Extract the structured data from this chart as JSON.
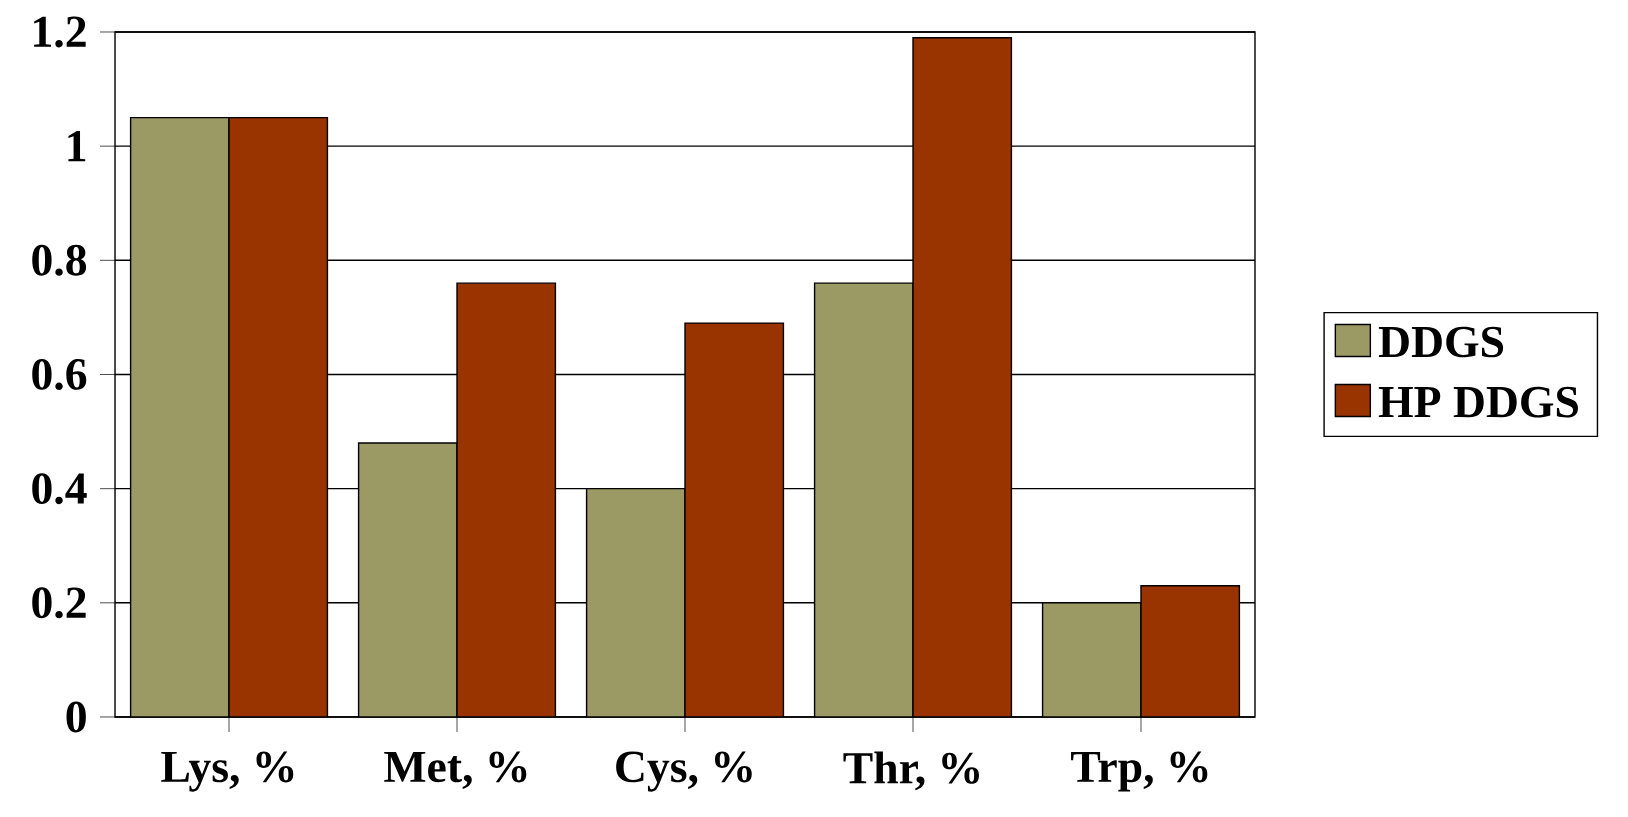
{
  "chart_data": {
    "type": "bar",
    "categories": [
      "Lys, %",
      "Met, %",
      "Cys, %",
      "Thr, %",
      "Trp, %"
    ],
    "series": [
      {
        "name": "DDGS",
        "color": "#9c9a64",
        "values": [
          1.05,
          0.48,
          0.4,
          0.76,
          0.2
        ]
      },
      {
        "name": "HP DDGS",
        "color": "#993300",
        "values": [
          1.05,
          0.76,
          0.69,
          1.19,
          0.23
        ]
      }
    ],
    "ylim": [
      0,
      1.2
    ],
    "yticks": [
      0,
      0.2,
      0.4,
      0.6,
      0.8,
      1,
      1.2
    ],
    "grid": "y",
    "legend": "right"
  }
}
